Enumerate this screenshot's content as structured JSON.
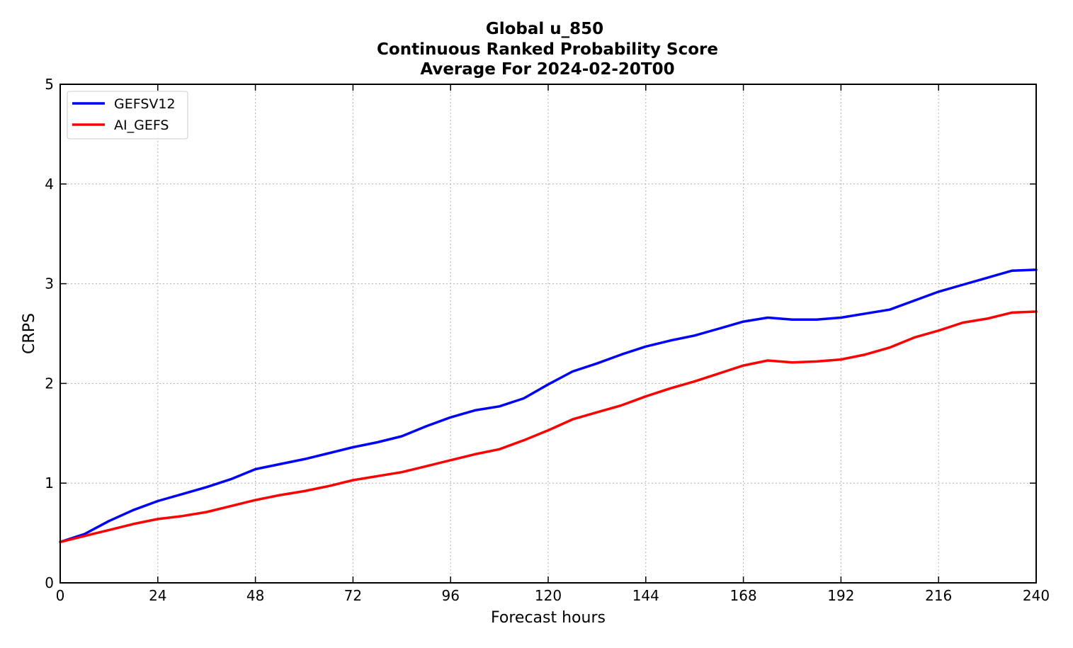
{
  "chart_data": {
    "type": "line",
    "title_lines": [
      "Global u_850",
      "Continuous Ranked Probability Score",
      "Average For 2024-02-20T00"
    ],
    "xlabel": "Forecast hours",
    "ylabel": "CRPS",
    "xlim": [
      0,
      240
    ],
    "ylim": [
      0,
      5
    ],
    "xticks": [
      0,
      24,
      48,
      72,
      96,
      120,
      144,
      168,
      192,
      216,
      240
    ],
    "yticks": [
      0,
      1,
      2,
      3,
      4,
      5
    ],
    "grid": true,
    "legend_position": "top-left",
    "x": [
      0,
      6,
      12,
      18,
      24,
      30,
      36,
      42,
      48,
      54,
      60,
      66,
      72,
      78,
      84,
      90,
      96,
      102,
      108,
      114,
      120,
      126,
      132,
      138,
      144,
      150,
      156,
      162,
      168,
      174,
      180,
      186,
      192,
      198,
      204,
      210,
      216,
      222,
      228,
      234,
      240
    ],
    "series": [
      {
        "name": "GEFSV12",
        "color": "#0000ff",
        "values": [
          0.41,
          0.49,
          0.62,
          0.73,
          0.82,
          0.89,
          0.96,
          1.04,
          1.14,
          1.19,
          1.24,
          1.3,
          1.36,
          1.41,
          1.47,
          1.57,
          1.66,
          1.73,
          1.77,
          1.85,
          1.99,
          2.12,
          2.2,
          2.29,
          2.37,
          2.43,
          2.48,
          2.55,
          2.62,
          2.66,
          2.64,
          2.64,
          2.66,
          2.7,
          2.74,
          2.83,
          2.92,
          2.99,
          3.06,
          3.13,
          3.14
        ]
      },
      {
        "name": "AI_GEFS",
        "color": "#ff0000",
        "values": [
          0.41,
          0.47,
          0.53,
          0.59,
          0.64,
          0.67,
          0.71,
          0.77,
          0.83,
          0.88,
          0.92,
          0.97,
          1.03,
          1.07,
          1.11,
          1.17,
          1.23,
          1.29,
          1.34,
          1.43,
          1.53,
          1.64,
          1.71,
          1.78,
          1.87,
          1.95,
          2.02,
          2.1,
          2.18,
          2.23,
          2.21,
          2.22,
          2.24,
          2.29,
          2.36,
          2.46,
          2.53,
          2.61,
          2.65,
          2.71,
          2.72
        ]
      }
    ]
  }
}
